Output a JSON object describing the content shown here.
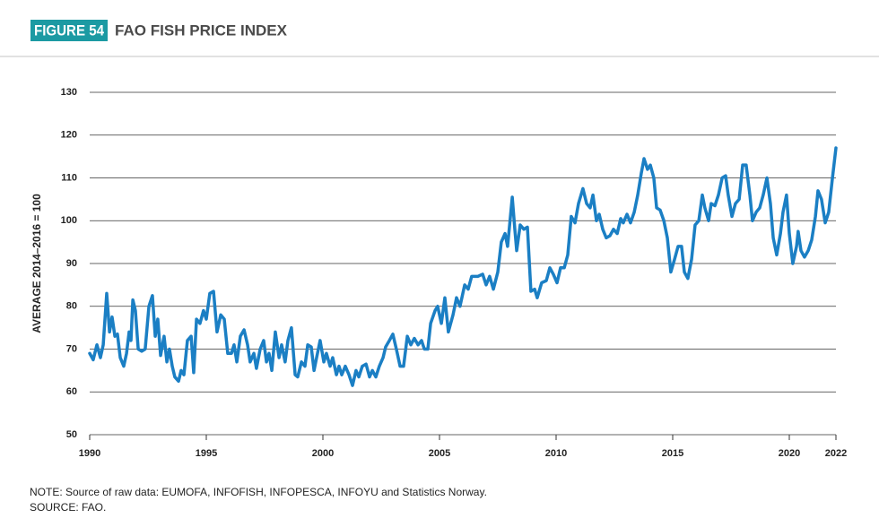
{
  "chart_data": {
    "type": "line",
    "figure_label": "FIGURE 54",
    "title": "FAO FISH PRICE INDEX",
    "y_label": "AVERAGE 2014–2016 = 100",
    "notes": [
      "NOTE: Source of raw data: EUMOFA, INFOFISH, INFOPESCA, INFOYU and Statistics Norway.",
      "SOURCE: FAO."
    ],
    "xlim": [
      1990,
      2022
    ],
    "xticks": [
      1990,
      1995,
      2000,
      2005,
      2010,
      2015,
      2020,
      2022
    ],
    "ylim": [
      50,
      130
    ],
    "yticks": [
      50,
      60,
      70,
      80,
      90,
      100,
      110,
      120,
      130
    ],
    "grid": true,
    "x": [
      1990,
      1990.15,
      1990.31,
      1990.46,
      1990.58,
      1990.73,
      1990.85,
      1990.96,
      1991.08,
      1991.19,
      1991.31,
      1991.46,
      1991.58,
      1991.69,
      1991.77,
      1991.85,
      1991.96,
      1992.08,
      1992.23,
      1992.38,
      1992.54,
      1992.69,
      1992.81,
      1992.92,
      1993.04,
      1993.19,
      1993.31,
      1993.42,
      1993.54,
      1993.65,
      1993.81,
      1993.92,
      1994.04,
      1994.19,
      1994.35,
      1994.46,
      1994.58,
      1994.73,
      1994.88,
      1995,
      1995.15,
      1995.31,
      1995.46,
      1995.62,
      1995.77,
      1995.92,
      1996.08,
      1996.19,
      1996.31,
      1996.46,
      1996.62,
      1996.77,
      1996.88,
      1997.04,
      1997.15,
      1997.31,
      1997.46,
      1997.58,
      1997.69,
      1997.81,
      1997.96,
      1998.12,
      1998.23,
      1998.38,
      1998.5,
      1998.65,
      1998.81,
      1998.92,
      1999.08,
      1999.23,
      1999.35,
      1999.5,
      1999.62,
      1999.73,
      1999.88,
      2000.04,
      2000.15,
      2000.31,
      2000.42,
      2000.58,
      2000.69,
      2000.81,
      2000.96,
      2001.12,
      2001.27,
      2001.42,
      2001.54,
      2001.69,
      2001.85,
      2002,
      2002.12,
      2002.27,
      2002.42,
      2002.58,
      2002.69,
      2002.85,
      2003,
      2003.15,
      2003.31,
      2003.46,
      2003.62,
      2003.77,
      2003.92,
      2004.08,
      2004.23,
      2004.35,
      2004.5,
      2004.62,
      2004.81,
      2004.92,
      2005.08,
      2005.23,
      2005.38,
      2005.58,
      2005.73,
      2005.88,
      2006.08,
      2006.23,
      2006.38,
      2006.65,
      2006.85,
      2007,
      2007.15,
      2007.31,
      2007.5,
      2007.65,
      2007.81,
      2007.92,
      2008.12,
      2008.23,
      2008.31,
      2008.46,
      2008.62,
      2008.77,
      2008.92,
      2009.08,
      2009.19,
      2009.38,
      2009.58,
      2009.73,
      2009.88,
      2010.04,
      2010.19,
      2010.35,
      2010.5,
      2010.65,
      2010.81,
      2010.96,
      2011.15,
      2011.31,
      2011.46,
      2011.58,
      2011.73,
      2011.85,
      2012,
      2012.15,
      2012.31,
      2012.46,
      2012.62,
      2012.77,
      2012.88,
      2013.04,
      2013.19,
      2013.35,
      2013.5,
      2013.65,
      2013.77,
      2013.92,
      2014.04,
      2014.19,
      2014.31,
      2014.46,
      2014.62,
      2014.77,
      2014.92,
      2015.08,
      2015.23,
      2015.38,
      2015.5,
      2015.65,
      2015.81,
      2015.96,
      2016.12,
      2016.27,
      2016.38,
      2016.54,
      2016.65,
      2016.81,
      2016.96,
      2017.12,
      2017.27,
      2017.38,
      2017.54,
      2017.69,
      2017.85,
      2018,
      2018.15,
      2018.31,
      2018.42,
      2018.58,
      2018.73,
      2018.88,
      2019.04,
      2019.19,
      2019.31,
      2019.46,
      2019.62,
      2019.73,
      2019.88,
      2020,
      2020.15,
      2020.31,
      2020.38,
      2020.5,
      2020.65,
      2020.81,
      2020.96,
      2021.12,
      2021.23,
      2021.38,
      2021.54,
      2021.69,
      2021.85,
      2022
    ],
    "series": [
      {
        "color": "#1b7fc4",
        "values": [
          69,
          67.5,
          71,
          68,
          71,
          83,
          74,
          77.5,
          73,
          73.5,
          68,
          66,
          69,
          74,
          72,
          81.5,
          79,
          70,
          69.5,
          70,
          80,
          82.5,
          73,
          77,
          68.5,
          73,
          67,
          70,
          66,
          63.5,
          62.5,
          65,
          64,
          72,
          73,
          64.5,
          77,
          76,
          79,
          77,
          83,
          83.5,
          74,
          78,
          77,
          69,
          69,
          71,
          67,
          73,
          74.5,
          71,
          67,
          69,
          65.5,
          70,
          72,
          67,
          69,
          65,
          74,
          68,
          71,
          67,
          72,
          75,
          64,
          63.5,
          67,
          66,
          71,
          70.5,
          65,
          68,
          72,
          67,
          69,
          66,
          68,
          64,
          66,
          64,
          66,
          64,
          61.5,
          65,
          63.5,
          66,
          66.5,
          63.5,
          65,
          63.5,
          66,
          68,
          70.5,
          72,
          73.5,
          70,
          66,
          66,
          73,
          71,
          72.5,
          71,
          72,
          70,
          70,
          76,
          79,
          80,
          76,
          82,
          74,
          78,
          82,
          80,
          85,
          84,
          87,
          87,
          87.5,
          85,
          87,
          84,
          88,
          95,
          97,
          94,
          105.5,
          98,
          93,
          99,
          98,
          98.5,
          83.5,
          84,
          82,
          85.5,
          86,
          89,
          87.5,
          85.5,
          89,
          89,
          92,
          101,
          99.5,
          104,
          107.5,
          104,
          103,
          106,
          100,
          101.5,
          98,
          96,
          96.5,
          98,
          97,
          100.5,
          99.5,
          101.5,
          99.5,
          102,
          106,
          111,
          114.5,
          112,
          113,
          110,
          103,
          102.5,
          100,
          96,
          88,
          91,
          94,
          94,
          88,
          86.5,
          91,
          99,
          100,
          106,
          103,
          100,
          104,
          103.5,
          106,
          110,
          110.5,
          106,
          101,
          104,
          105,
          113,
          113,
          106,
          100,
          102,
          103,
          106,
          110,
          104,
          96,
          92,
          97,
          102,
          106,
          97,
          90,
          94,
          97.5,
          93,
          91.5,
          93,
          95.5,
          101,
          107,
          105,
          99.5,
          102,
          110,
          117
        ]
      }
    ]
  }
}
